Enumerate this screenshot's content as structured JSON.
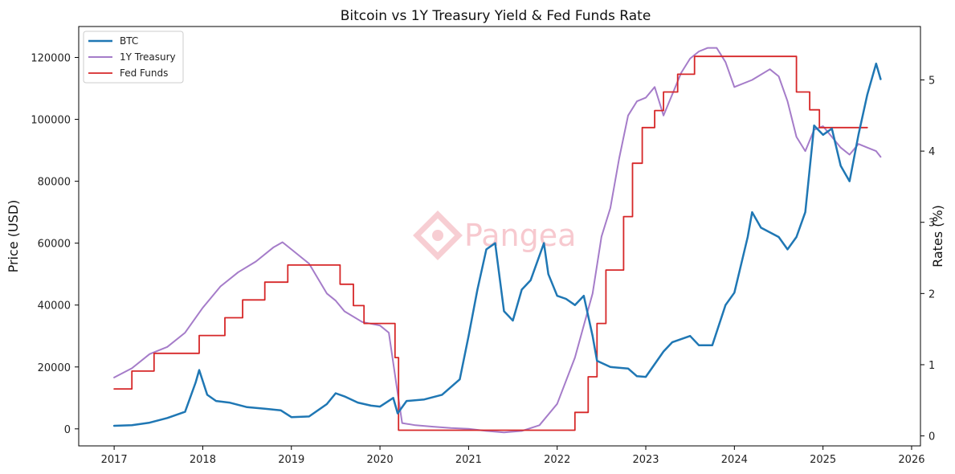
{
  "chart_data": {
    "type": "line",
    "title": "Bitcoin vs 1Y Treasury Yield & Fed Funds Rate",
    "ylabel": "Price (USD)",
    "y2label": "Rates (%)",
    "xlabel": "",
    "xlim": [
      2016.6,
      2026.1
    ],
    "ylim": [
      -5500,
      130000
    ],
    "y2lim": [
      -0.14,
      5.75
    ],
    "x_ticks": [
      "2017",
      "2018",
      "2019",
      "2020",
      "2021",
      "2022",
      "2023",
      "2024",
      "2025",
      "2026"
    ],
    "y_ticks": [
      "0",
      "20000",
      "40000",
      "60000",
      "80000",
      "100000",
      "120000"
    ],
    "y2_ticks": [
      "0",
      "1",
      "2",
      "3",
      "4",
      "5"
    ],
    "grid": false,
    "legend_position": "top-left",
    "watermark": "Pangea",
    "colors": {
      "btc": "#1f77b4",
      "treasury": "#a57cc9",
      "fed": "#d62728"
    },
    "series": [
      {
        "name": "BTC",
        "axis": "left",
        "color": "#1f77b4",
        "x": [
          2017.0,
          2017.2,
          2017.4,
          2017.6,
          2017.8,
          2017.92,
          2017.96,
          2018.05,
          2018.15,
          2018.3,
          2018.5,
          2018.7,
          2018.88,
          2019.0,
          2019.2,
          2019.4,
          2019.5,
          2019.6,
          2019.75,
          2019.9,
          2020.0,
          2020.15,
          2020.2,
          2020.3,
          2020.5,
          2020.7,
          2020.9,
          2021.0,
          2021.1,
          2021.2,
          2021.3,
          2021.4,
          2021.5,
          2021.6,
          2021.7,
          2021.85,
          2021.9,
          2022.0,
          2022.1,
          2022.2,
          2022.3,
          2022.4,
          2022.45,
          2022.6,
          2022.8,
          2022.9,
          2023.0,
          2023.2,
          2023.3,
          2023.5,
          2023.6,
          2023.75,
          2023.9,
          2024.0,
          2024.15,
          2024.2,
          2024.3,
          2024.5,
          2024.6,
          2024.7,
          2024.8,
          2024.9,
          2025.0,
          2025.1,
          2025.2,
          2025.3,
          2025.4,
          2025.5,
          2025.6,
          2025.65
        ],
        "values": [
          1000,
          1200,
          2000,
          3500,
          5500,
          15000,
          19000,
          11000,
          9000,
          8500,
          7000,
          6500,
          6000,
          3800,
          4000,
          8000,
          11500,
          10500,
          8500,
          7500,
          7200,
          10000,
          5000,
          9000,
          9500,
          11000,
          16000,
          30000,
          45000,
          58000,
          60000,
          38000,
          35000,
          45000,
          48000,
          60000,
          50000,
          43000,
          42000,
          40000,
          43000,
          30000,
          22000,
          20000,
          19500,
          17000,
          16800,
          25000,
          28000,
          30000,
          27000,
          27000,
          40000,
          44000,
          62000,
          70000,
          65000,
          62000,
          58000,
          62000,
          70000,
          98000,
          95000,
          97000,
          85000,
          80000,
          95000,
          108000,
          118000,
          113000
        ]
      },
      {
        "name": "1Y Treasury",
        "axis": "right",
        "color": "#a57cc9",
        "x": [
          2017.0,
          2017.2,
          2017.4,
          2017.6,
          2017.8,
          2018.0,
          2018.2,
          2018.4,
          2018.6,
          2018.8,
          2018.9,
          2019.0,
          2019.2,
          2019.4,
          2019.5,
          2019.6,
          2019.8,
          2020.0,
          2020.1,
          2020.2,
          2020.25,
          2020.4,
          2020.6,
          2020.8,
          2021.0,
          2021.2,
          2021.4,
          2021.6,
          2021.8,
          2022.0,
          2022.2,
          2022.4,
          2022.5,
          2022.6,
          2022.7,
          2022.8,
          2022.9,
          2023.0,
          2023.1,
          2023.2,
          2023.3,
          2023.4,
          2023.5,
          2023.6,
          2023.7,
          2023.8,
          2023.9,
          2024.0,
          2024.2,
          2024.4,
          2024.5,
          2024.6,
          2024.7,
          2024.8,
          2024.9,
          2025.0,
          2025.1,
          2025.2,
          2025.3,
          2025.4,
          2025.5,
          2025.6,
          2025.65
        ],
        "values": [
          0.82,
          0.95,
          1.15,
          1.25,
          1.45,
          1.8,
          2.1,
          2.3,
          2.45,
          2.65,
          2.72,
          2.62,
          2.42,
          2.0,
          1.9,
          1.75,
          1.6,
          1.55,
          1.45,
          0.6,
          0.18,
          0.15,
          0.13,
          0.11,
          0.1,
          0.07,
          0.05,
          0.07,
          0.15,
          0.45,
          1.1,
          2.0,
          2.8,
          3.2,
          3.9,
          4.5,
          4.7,
          4.75,
          4.9,
          4.5,
          4.8,
          5.1,
          5.3,
          5.4,
          5.45,
          5.45,
          5.25,
          4.9,
          5.0,
          5.15,
          5.05,
          4.7,
          4.2,
          4.0,
          4.3,
          4.35,
          4.2,
          4.05,
          3.95,
          4.1,
          4.05,
          4.0,
          3.92
        ]
      },
      {
        "name": "Fed Funds",
        "axis": "right",
        "color": "#d62728",
        "x": [
          2017.0,
          2017.2,
          2017.2,
          2017.45,
          2017.45,
          2017.96,
          2017.96,
          2018.25,
          2018.25,
          2018.45,
          2018.45,
          2018.7,
          2018.7,
          2018.96,
          2018.96,
          2019.55,
          2019.55,
          2019.7,
          2019.7,
          2019.82,
          2019.82,
          2020.17,
          2020.17,
          2020.21,
          2020.21,
          2022.2,
          2022.2,
          2022.35,
          2022.35,
          2022.45,
          2022.45,
          2022.55,
          2022.55,
          2022.75,
          2022.75,
          2022.85,
          2022.85,
          2022.96,
          2022.96,
          2023.1,
          2023.1,
          2023.2,
          2023.2,
          2023.36,
          2023.36,
          2023.55,
          2023.55,
          2024.7,
          2024.7,
          2024.85,
          2024.85,
          2024.96,
          2024.96,
          2025.5
        ],
        "values": [
          0.66,
          0.66,
          0.91,
          0.91,
          1.16,
          1.16,
          1.41,
          1.41,
          1.66,
          1.66,
          1.91,
          1.91,
          2.16,
          2.16,
          2.4,
          2.4,
          2.13,
          2.13,
          1.83,
          1.83,
          1.58,
          1.58,
          1.1,
          1.1,
          0.08,
          0.08,
          0.33,
          0.33,
          0.83,
          0.83,
          1.58,
          1.58,
          2.33,
          2.33,
          3.08,
          3.08,
          3.83,
          3.83,
          4.33,
          4.33,
          4.57,
          4.57,
          4.83,
          4.83,
          5.08,
          5.08,
          5.33,
          5.33,
          4.83,
          4.83,
          4.58,
          4.58,
          4.33,
          4.33
        ]
      }
    ]
  }
}
